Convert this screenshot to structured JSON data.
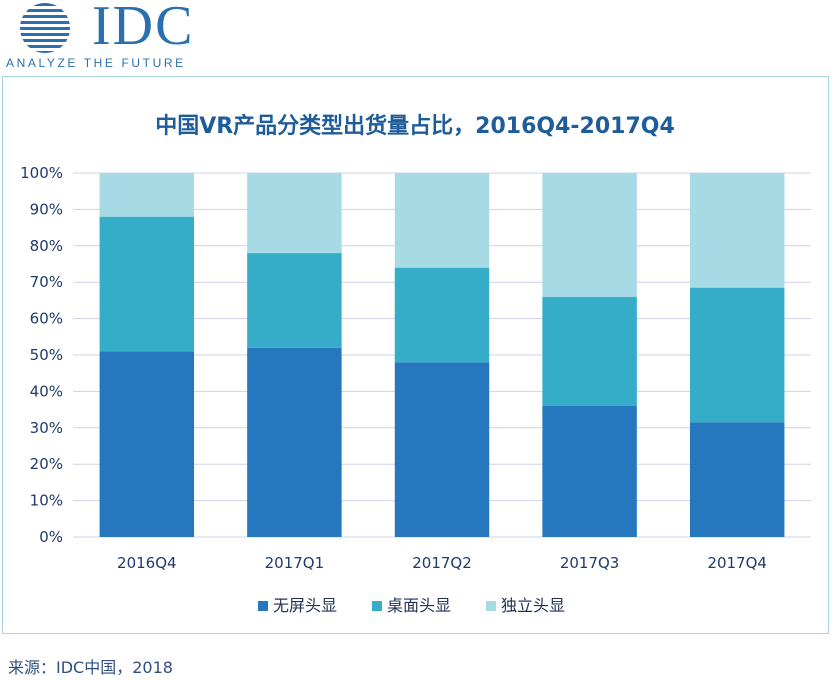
{
  "logo": {
    "text": "IDC",
    "tagline": "ANALYZE THE FUTURE"
  },
  "source": "来源：IDC中国，2018",
  "colors": {
    "series": [
      "#2578be",
      "#36adc8",
      "#a6dbe6"
    ],
    "title": "#1f5c9a",
    "axis_text": "#1f3a6e",
    "grid": "#cfd3e8"
  },
  "chart_data": {
    "type": "bar",
    "stacked": true,
    "title": "中国VR产品分类型出货量占比，2016Q4-2017Q4",
    "xlabel": "",
    "ylabel": "",
    "categories": [
      "2016Q4",
      "2017Q1",
      "2017Q2",
      "2017Q3",
      "2017Q4"
    ],
    "series": [
      {
        "name": "无屏头显",
        "values": [
          51,
          52,
          48,
          36,
          31.5
        ]
      },
      {
        "name": "桌面头显",
        "values": [
          37,
          26,
          26,
          30,
          37
        ]
      },
      {
        "name": "独立头显",
        "values": [
          12,
          22,
          26,
          34,
          31.5
        ]
      }
    ],
    "ylim": [
      0,
      100
    ],
    "yticks": [
      "0%",
      "10%",
      "20%",
      "30%",
      "40%",
      "50%",
      "60%",
      "70%",
      "80%",
      "90%",
      "100%"
    ],
    "grid": true,
    "legend_position": "bottom"
  }
}
